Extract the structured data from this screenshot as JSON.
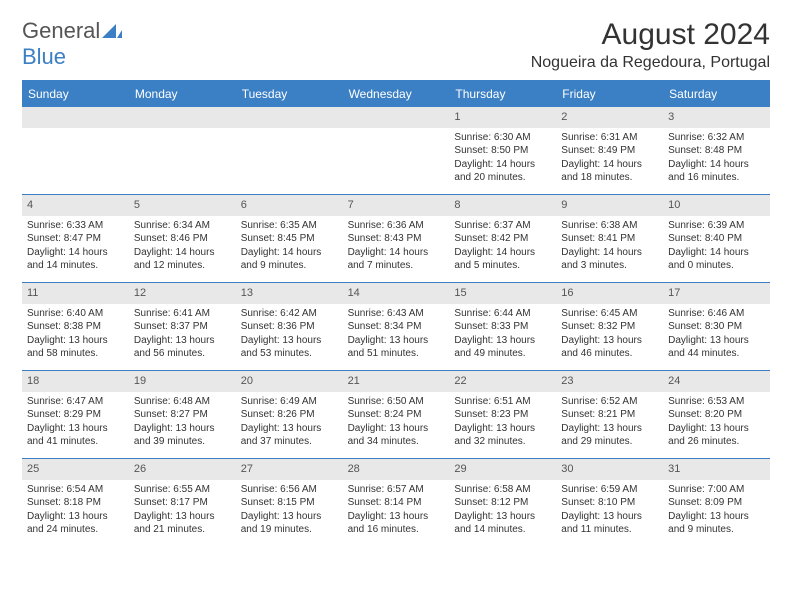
{
  "logo": {
    "word1": "General",
    "word2": "Blue",
    "color1": "#555555",
    "color2": "#3b7fc4"
  },
  "title": "August 2024",
  "location": "Nogueira da Regedoura, Portugal",
  "theme": {
    "header_bg": "#3b7fc4",
    "header_fg": "#ffffff",
    "daynum_bg": "#e8e8e8",
    "cell_border": "#3b7fc4",
    "text": "#333333",
    "fontsize_title": 30,
    "fontsize_location": 16,
    "fontsize_dayheader": 12,
    "fontsize_daynum": 11,
    "fontsize_body": 10
  },
  "day_headers": [
    "Sunday",
    "Monday",
    "Tuesday",
    "Wednesday",
    "Thursday",
    "Friday",
    "Saturday"
  ],
  "weeks": [
    [
      null,
      null,
      null,
      null,
      {
        "n": "1",
        "sunrise": "Sunrise: 6:30 AM",
        "sunset": "Sunset: 8:50 PM",
        "daylight1": "Daylight: 14 hours",
        "daylight2": "and 20 minutes."
      },
      {
        "n": "2",
        "sunrise": "Sunrise: 6:31 AM",
        "sunset": "Sunset: 8:49 PM",
        "daylight1": "Daylight: 14 hours",
        "daylight2": "and 18 minutes."
      },
      {
        "n": "3",
        "sunrise": "Sunrise: 6:32 AM",
        "sunset": "Sunset: 8:48 PM",
        "daylight1": "Daylight: 14 hours",
        "daylight2": "and 16 minutes."
      }
    ],
    [
      {
        "n": "4",
        "sunrise": "Sunrise: 6:33 AM",
        "sunset": "Sunset: 8:47 PM",
        "daylight1": "Daylight: 14 hours",
        "daylight2": "and 14 minutes."
      },
      {
        "n": "5",
        "sunrise": "Sunrise: 6:34 AM",
        "sunset": "Sunset: 8:46 PM",
        "daylight1": "Daylight: 14 hours",
        "daylight2": "and 12 minutes."
      },
      {
        "n": "6",
        "sunrise": "Sunrise: 6:35 AM",
        "sunset": "Sunset: 8:45 PM",
        "daylight1": "Daylight: 14 hours",
        "daylight2": "and 9 minutes."
      },
      {
        "n": "7",
        "sunrise": "Sunrise: 6:36 AM",
        "sunset": "Sunset: 8:43 PM",
        "daylight1": "Daylight: 14 hours",
        "daylight2": "and 7 minutes."
      },
      {
        "n": "8",
        "sunrise": "Sunrise: 6:37 AM",
        "sunset": "Sunset: 8:42 PM",
        "daylight1": "Daylight: 14 hours",
        "daylight2": "and 5 minutes."
      },
      {
        "n": "9",
        "sunrise": "Sunrise: 6:38 AM",
        "sunset": "Sunset: 8:41 PM",
        "daylight1": "Daylight: 14 hours",
        "daylight2": "and 3 minutes."
      },
      {
        "n": "10",
        "sunrise": "Sunrise: 6:39 AM",
        "sunset": "Sunset: 8:40 PM",
        "daylight1": "Daylight: 14 hours",
        "daylight2": "and 0 minutes."
      }
    ],
    [
      {
        "n": "11",
        "sunrise": "Sunrise: 6:40 AM",
        "sunset": "Sunset: 8:38 PM",
        "daylight1": "Daylight: 13 hours",
        "daylight2": "and 58 minutes."
      },
      {
        "n": "12",
        "sunrise": "Sunrise: 6:41 AM",
        "sunset": "Sunset: 8:37 PM",
        "daylight1": "Daylight: 13 hours",
        "daylight2": "and 56 minutes."
      },
      {
        "n": "13",
        "sunrise": "Sunrise: 6:42 AM",
        "sunset": "Sunset: 8:36 PM",
        "daylight1": "Daylight: 13 hours",
        "daylight2": "and 53 minutes."
      },
      {
        "n": "14",
        "sunrise": "Sunrise: 6:43 AM",
        "sunset": "Sunset: 8:34 PM",
        "daylight1": "Daylight: 13 hours",
        "daylight2": "and 51 minutes."
      },
      {
        "n": "15",
        "sunrise": "Sunrise: 6:44 AM",
        "sunset": "Sunset: 8:33 PM",
        "daylight1": "Daylight: 13 hours",
        "daylight2": "and 49 minutes."
      },
      {
        "n": "16",
        "sunrise": "Sunrise: 6:45 AM",
        "sunset": "Sunset: 8:32 PM",
        "daylight1": "Daylight: 13 hours",
        "daylight2": "and 46 minutes."
      },
      {
        "n": "17",
        "sunrise": "Sunrise: 6:46 AM",
        "sunset": "Sunset: 8:30 PM",
        "daylight1": "Daylight: 13 hours",
        "daylight2": "and 44 minutes."
      }
    ],
    [
      {
        "n": "18",
        "sunrise": "Sunrise: 6:47 AM",
        "sunset": "Sunset: 8:29 PM",
        "daylight1": "Daylight: 13 hours",
        "daylight2": "and 41 minutes."
      },
      {
        "n": "19",
        "sunrise": "Sunrise: 6:48 AM",
        "sunset": "Sunset: 8:27 PM",
        "daylight1": "Daylight: 13 hours",
        "daylight2": "and 39 minutes."
      },
      {
        "n": "20",
        "sunrise": "Sunrise: 6:49 AM",
        "sunset": "Sunset: 8:26 PM",
        "daylight1": "Daylight: 13 hours",
        "daylight2": "and 37 minutes."
      },
      {
        "n": "21",
        "sunrise": "Sunrise: 6:50 AM",
        "sunset": "Sunset: 8:24 PM",
        "daylight1": "Daylight: 13 hours",
        "daylight2": "and 34 minutes."
      },
      {
        "n": "22",
        "sunrise": "Sunrise: 6:51 AM",
        "sunset": "Sunset: 8:23 PM",
        "daylight1": "Daylight: 13 hours",
        "daylight2": "and 32 minutes."
      },
      {
        "n": "23",
        "sunrise": "Sunrise: 6:52 AM",
        "sunset": "Sunset: 8:21 PM",
        "daylight1": "Daylight: 13 hours",
        "daylight2": "and 29 minutes."
      },
      {
        "n": "24",
        "sunrise": "Sunrise: 6:53 AM",
        "sunset": "Sunset: 8:20 PM",
        "daylight1": "Daylight: 13 hours",
        "daylight2": "and 26 minutes."
      }
    ],
    [
      {
        "n": "25",
        "sunrise": "Sunrise: 6:54 AM",
        "sunset": "Sunset: 8:18 PM",
        "daylight1": "Daylight: 13 hours",
        "daylight2": "and 24 minutes."
      },
      {
        "n": "26",
        "sunrise": "Sunrise: 6:55 AM",
        "sunset": "Sunset: 8:17 PM",
        "daylight1": "Daylight: 13 hours",
        "daylight2": "and 21 minutes."
      },
      {
        "n": "27",
        "sunrise": "Sunrise: 6:56 AM",
        "sunset": "Sunset: 8:15 PM",
        "daylight1": "Daylight: 13 hours",
        "daylight2": "and 19 minutes."
      },
      {
        "n": "28",
        "sunrise": "Sunrise: 6:57 AM",
        "sunset": "Sunset: 8:14 PM",
        "daylight1": "Daylight: 13 hours",
        "daylight2": "and 16 minutes."
      },
      {
        "n": "29",
        "sunrise": "Sunrise: 6:58 AM",
        "sunset": "Sunset: 8:12 PM",
        "daylight1": "Daylight: 13 hours",
        "daylight2": "and 14 minutes."
      },
      {
        "n": "30",
        "sunrise": "Sunrise: 6:59 AM",
        "sunset": "Sunset: 8:10 PM",
        "daylight1": "Daylight: 13 hours",
        "daylight2": "and 11 minutes."
      },
      {
        "n": "31",
        "sunrise": "Sunrise: 7:00 AM",
        "sunset": "Sunset: 8:09 PM",
        "daylight1": "Daylight: 13 hours",
        "daylight2": "and 9 minutes."
      }
    ]
  ]
}
